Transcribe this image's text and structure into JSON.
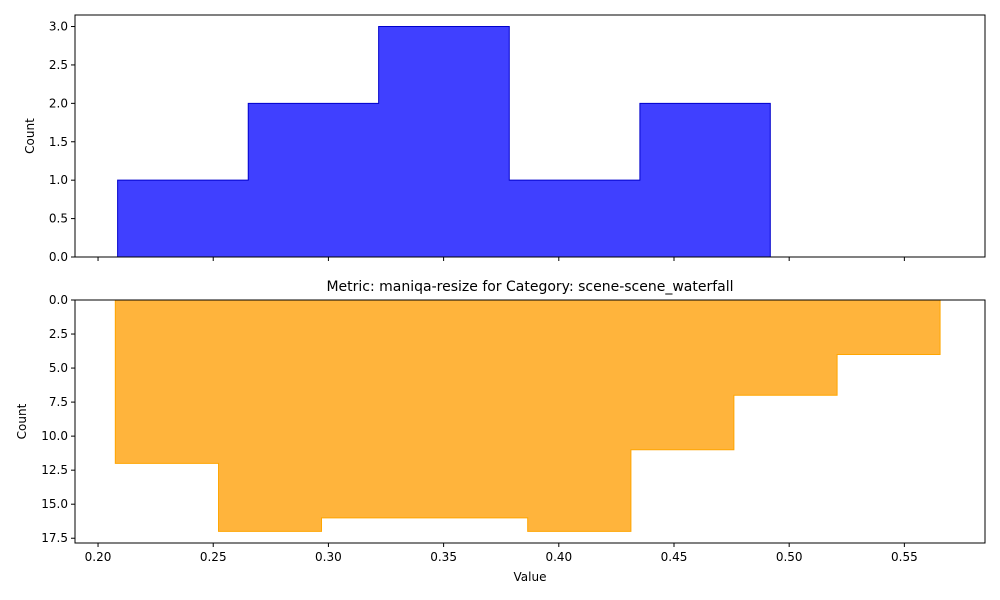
{
  "chart_data": [
    {
      "type": "histogram",
      "title": "",
      "xlabel": "",
      "ylabel": "Count",
      "xlim": [
        0.19,
        0.585
      ],
      "ylim": [
        0,
        3.15
      ],
      "x_ticks": [
        0.2,
        0.25,
        0.3,
        0.35,
        0.4,
        0.45,
        0.5,
        0.55
      ],
      "x_tick_labels_visible": false,
      "y_ticks": [
        0.0,
        0.5,
        1.0,
        1.5,
        2.0,
        2.5,
        3.0
      ],
      "y_tick_labels": [
        "0.0",
        "0.5",
        "1.0",
        "1.5",
        "2.0",
        "2.5",
        "3.0"
      ],
      "bin_edges": [
        0.2085,
        0.2652,
        0.3218,
        0.3785,
        0.4352,
        0.4918
      ],
      "values": [
        1,
        2,
        3,
        1,
        2
      ],
      "fill_color": "#4040ff",
      "edge_color": "#0000cc",
      "y_inverted": false
    },
    {
      "type": "histogram",
      "title": "Metric: maniqa-resize for Category: scene-scene_waterfall",
      "xlabel": "Value",
      "ylabel": "Count",
      "xlim": [
        0.19,
        0.585
      ],
      "ylim": [
        17.85,
        0
      ],
      "x_ticks": [
        0.2,
        0.25,
        0.3,
        0.35,
        0.4,
        0.45,
        0.5,
        0.55
      ],
      "x_tick_labels": [
        "0.20",
        "0.25",
        "0.30",
        "0.35",
        "0.40",
        "0.45",
        "0.50",
        "0.55"
      ],
      "y_ticks": [
        0.0,
        2.5,
        5.0,
        7.5,
        10.0,
        12.5,
        15.0,
        17.5
      ],
      "y_tick_labels": [
        "0.0",
        "2.5",
        "5.0",
        "7.5",
        "10.0",
        "12.5",
        "15.0",
        "17.5"
      ],
      "bin_edges": [
        0.2075,
        0.2523,
        0.297,
        0.3418,
        0.3865,
        0.4313,
        0.476,
        0.5208,
        0.5655
      ],
      "values": [
        12,
        17,
        16,
        16,
        17,
        11,
        7,
        4
      ],
      "fill_color": "#ffb43c",
      "edge_color": "#ffa500",
      "y_inverted": true
    }
  ]
}
